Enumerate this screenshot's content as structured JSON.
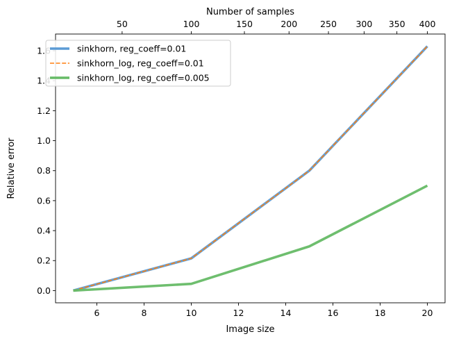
{
  "chart_data": {
    "type": "line",
    "xlabel": "Image size",
    "ylabel": "Relative error",
    "top_xlabel": "Number of samples",
    "xlim": [
      4.25,
      20.75
    ],
    "ylim": [
      -0.0815,
      1.7115
    ],
    "x": [
      5,
      10,
      15,
      20
    ],
    "xticks": [
      6,
      8,
      10,
      12,
      14,
      16,
      18,
      20
    ],
    "xtick_labels": [
      "6",
      "8",
      "10",
      "12",
      "14",
      "16",
      "18",
      "20"
    ],
    "yticks": [
      0.0,
      0.2,
      0.4,
      0.6,
      0.8,
      1.0,
      1.2,
      1.4,
      1.6
    ],
    "ytick_labels": [
      "0.0",
      "0.2",
      "0.4",
      "0.6",
      "0.8",
      "1.0",
      "1.2",
      "1.4",
      "1.6"
    ],
    "top_xticks": [
      7.07,
      10,
      12.25,
      14.14,
      15.81,
      17.32,
      18.71,
      20
    ],
    "top_xtick_labels": [
      "50",
      "100",
      "150",
      "200",
      "250",
      "300",
      "350",
      "400"
    ],
    "grid": false,
    "legend_position": "top-left",
    "series": [
      {
        "name": "sinkhorn, reg_coeff=0.01",
        "values": [
          0.0,
          0.215,
          0.8,
          1.63
        ],
        "color": "#5b9bd5",
        "style": "solid"
      },
      {
        "name": "sinkhorn_log, reg_coeff=0.01",
        "values": [
          0.0,
          0.215,
          0.8,
          1.63
        ],
        "color": "#ff7f0e",
        "style": "dashed"
      },
      {
        "name": "sinkhorn_log, reg_coeff=0.005",
        "values": [
          0.0,
          0.045,
          0.295,
          0.7
        ],
        "color": "#66bb66",
        "style": "solid"
      }
    ]
  }
}
